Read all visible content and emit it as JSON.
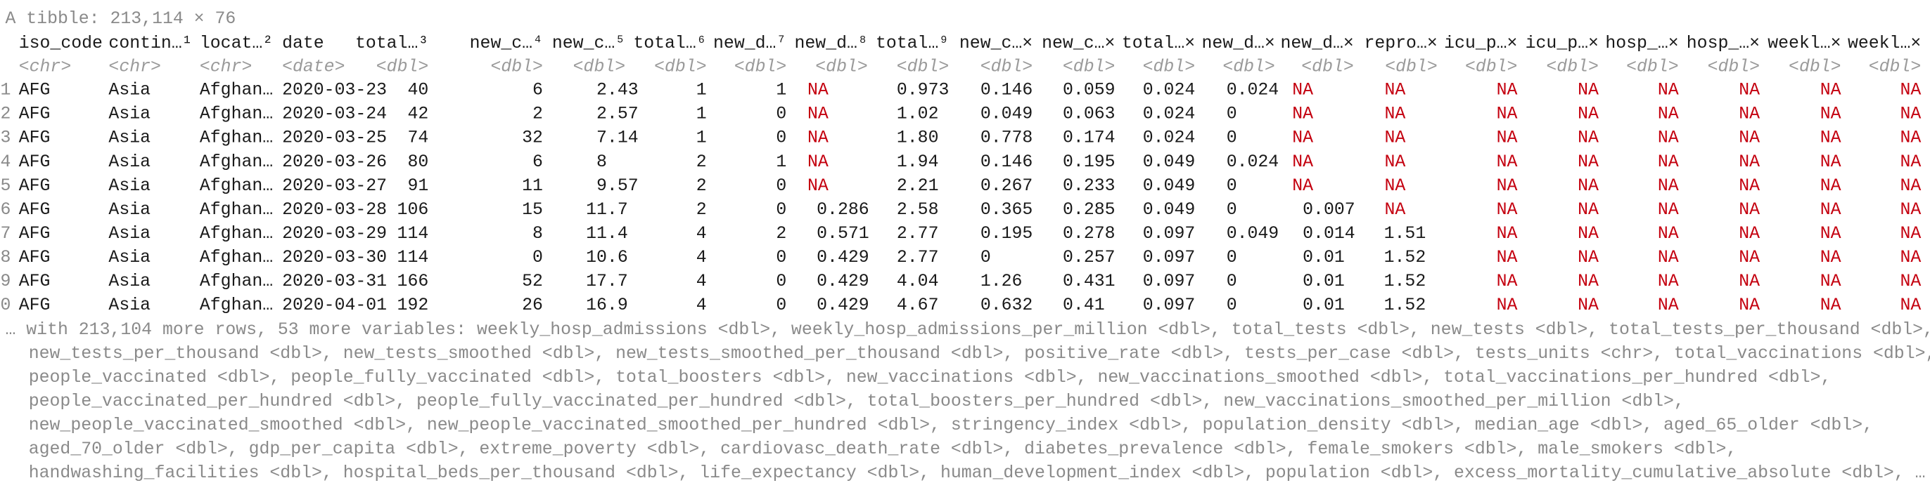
{
  "header": {
    "title": "A tibble: 213,114 × 76"
  },
  "table": {
    "columns": [
      "iso_code",
      "contin…¹",
      "locat…²",
      "date",
      "total…³",
      "new_c…⁴",
      "new_c…⁵",
      "total…⁶",
      "new_d…⁷",
      "new_d…⁸",
      "total…⁹",
      "new_c…×",
      "new_c…×",
      "total…×",
      "new_d…×",
      "new_d…×",
      "repro…×",
      "icu_p…×",
      "icu_p…×",
      "hosp_…×",
      "hosp_…×",
      "weekl…×",
      "weekl…×"
    ],
    "types": [
      "<chr>",
      "<chr>",
      "<chr>",
      "<date>",
      "<dbl>",
      "<dbl>",
      "<dbl>",
      "<dbl>",
      "<dbl>",
      "<dbl>",
      "<dbl>",
      "<dbl>",
      "<dbl>",
      "<dbl>",
      "<dbl>",
      "<dbl>",
      "<dbl>",
      "<dbl>",
      "<dbl>",
      "<dbl>",
      "<dbl>",
      "<dbl>",
      "<dbl>"
    ],
    "row_numbers": [
      "1",
      "2",
      "3",
      "4",
      "5",
      "6",
      "7",
      "8",
      "9",
      "0"
    ],
    "rows": [
      [
        "AFG",
        "Asia",
        "Afghan…",
        "2020-03-23",
        "40",
        "6",
        "2.43",
        "1",
        "1",
        "NA",
        "0.973",
        "0.146",
        "0.059",
        "0.024",
        "0.024",
        "NA",
        "NA",
        "NA",
        "NA",
        "NA",
        "NA",
        "NA",
        "NA"
      ],
      [
        "AFG",
        "Asia",
        "Afghan…",
        "2020-03-24",
        "42",
        "2",
        "2.57",
        "1",
        "0",
        "NA",
        "1.02",
        "0.049",
        "0.063",
        "0.024",
        "0",
        "NA",
        "NA",
        "NA",
        "NA",
        "NA",
        "NA",
        "NA",
        "NA"
      ],
      [
        "AFG",
        "Asia",
        "Afghan…",
        "2020-03-25",
        "74",
        "32",
        "7.14",
        "1",
        "0",
        "NA",
        "1.80",
        "0.778",
        "0.174",
        "0.024",
        "0",
        "NA",
        "NA",
        "NA",
        "NA",
        "NA",
        "NA",
        "NA",
        "NA"
      ],
      [
        "AFG",
        "Asia",
        "Afghan…",
        "2020-03-26",
        "80",
        "6",
        "8",
        "2",
        "1",
        "NA",
        "1.94",
        "0.146",
        "0.195",
        "0.049",
        "0.024",
        "NA",
        "NA",
        "NA",
        "NA",
        "NA",
        "NA",
        "NA",
        "NA"
      ],
      [
        "AFG",
        "Asia",
        "Afghan…",
        "2020-03-27",
        "91",
        "11",
        "9.57",
        "2",
        "0",
        "NA",
        "2.21",
        "0.267",
        "0.233",
        "0.049",
        "0",
        "NA",
        "NA",
        "NA",
        "NA",
        "NA",
        "NA",
        "NA",
        "NA"
      ],
      [
        "AFG",
        "Asia",
        "Afghan…",
        "2020-03-28",
        "106",
        "15",
        "11.7",
        "2",
        "0",
        "0.286",
        "2.58",
        "0.365",
        "0.285",
        "0.049",
        "0",
        "0.007",
        "NA",
        "NA",
        "NA",
        "NA",
        "NA",
        "NA",
        "NA"
      ],
      [
        "AFG",
        "Asia",
        "Afghan…",
        "2020-03-29",
        "114",
        "8",
        "11.4",
        "4",
        "2",
        "0.571",
        "2.77",
        "0.195",
        "0.278",
        "0.097",
        "0.049",
        "0.014",
        "1.51",
        "NA",
        "NA",
        "NA",
        "NA",
        "NA",
        "NA"
      ],
      [
        "AFG",
        "Asia",
        "Afghan…",
        "2020-03-30",
        "114",
        "0",
        "10.6",
        "4",
        "0",
        "0.429",
        "2.77",
        "0",
        "0.257",
        "0.097",
        "0",
        "0.01",
        "1.52",
        "NA",
        "NA",
        "NA",
        "NA",
        "NA",
        "NA"
      ],
      [
        "AFG",
        "Asia",
        "Afghan…",
        "2020-03-31",
        "166",
        "52",
        "17.7",
        "4",
        "0",
        "0.429",
        "4.04",
        "1.26",
        "0.431",
        "0.097",
        "0",
        "0.01",
        "1.52",
        "NA",
        "NA",
        "NA",
        "NA",
        "NA",
        "NA"
      ],
      [
        "AFG",
        "Asia",
        "Afghan…",
        "2020-04-01",
        "192",
        "26",
        "16.9",
        "4",
        "0",
        "0.429",
        "4.67",
        "0.632",
        "0.41",
        "0.097",
        "0",
        "0.01",
        "1.52",
        "NA",
        "NA",
        "NA",
        "NA",
        "NA",
        "NA"
      ]
    ]
  },
  "footer": {
    "lines": [
      "… with 213,104 more rows, 53 more variables: weekly_hosp_admissions <dbl>, weekly_hosp_admissions_per_million <dbl>, total_tests <dbl>, new_tests <dbl>, total_tests_per_thousand <dbl>,",
      "new_tests_per_thousand <dbl>, new_tests_smoothed <dbl>, new_tests_smoothed_per_thousand <dbl>, positive_rate <dbl>, tests_per_case <dbl>, tests_units <chr>, total_vaccinations <dbl>,",
      "people_vaccinated <dbl>, people_fully_vaccinated <dbl>, total_boosters <dbl>, new_vaccinations <dbl>, new_vaccinations_smoothed <dbl>, total_vaccinations_per_hundred <dbl>,",
      "people_vaccinated_per_hundred <dbl>, people_fully_vaccinated_per_hundred <dbl>, total_boosters_per_hundred <dbl>, new_vaccinations_smoothed_per_million <dbl>,",
      "new_people_vaccinated_smoothed <dbl>, new_people_vaccinated_smoothed_per_hundred <dbl>, stringency_index <dbl>, population_density <dbl>, median_age <dbl>, aged_65_older <dbl>,",
      "aged_70_older <dbl>, gdp_per_capita <dbl>, extreme_poverty <dbl>, cardiovasc_death_rate <dbl>, diabetes_prevalence <dbl>, female_smokers <dbl>, male_smokers <dbl>,",
      "handwashing_facilities <dbl>, hospital_beds_per_thousand <dbl>, life_expectancy <dbl>, human_development_index <dbl>, population <dbl>, excess_mortality_cumulative_absolute <dbl>, …"
    ]
  }
}
